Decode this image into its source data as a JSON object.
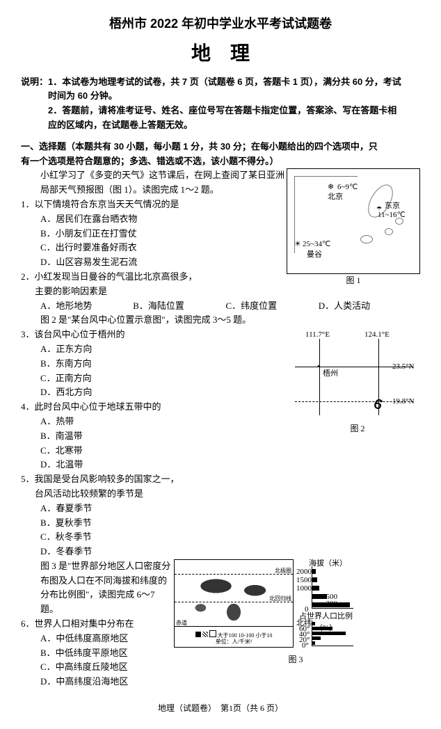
{
  "header": {
    "title": "梧州市 2022 年初中学业水平考试试题卷",
    "subject": "地理"
  },
  "instructions": {
    "label": "说明：",
    "items": [
      "1．本试卷为地理考试的试卷，共 7 页（试题卷 6 页，答题卡 1 页），满分共 60 分，考试时间为 60 分钟。",
      "2．答题前，请将准考证号、姓名、座位号写在答题卡指定位置，答案涂、写在答题卡相应的区域内，在试题卷上答题无效。"
    ]
  },
  "section1": {
    "heading": "一、选择题（本题共有 30 小题，每小题 1 分，共 30 分；在每小题给出的四个选项中，只有一个选项是符合题意的；多选、错选或不选，该小题不得分。）"
  },
  "passage1": {
    "text": "小红学习了《多变的天气》这节课后，在网上查阅了某日亚洲局部天气预报图（图 1）。读图完成 1～2 题。"
  },
  "fig1": {
    "caption": "图 1",
    "beijing": "北京",
    "beijing_w": "6~9℃",
    "tokyo": "东京",
    "tokyo_w": "11~16℃",
    "bangkok": "曼谷",
    "bangkok_w": "25~34℃",
    "snow": "❄",
    "sun": "☀",
    "cloud_rain": "☂"
  },
  "q1": {
    "stem": "1．以下情境符合东京当天天气情况的是",
    "A": "A．居民们在露台晒衣物",
    "B": "B．小朋友们正在打雪仗",
    "C": "C．出行时要准备好雨衣",
    "D": "D．山区容易发生泥石流"
  },
  "q2": {
    "stem_a": "2．小红发现当日曼谷的气温比北京高很多，",
    "stem_b": "主要的影响因素是",
    "A": "A．地形地势",
    "B": "B．海陆位置",
    "C": "C．纬度位置",
    "D": "D．人类活动"
  },
  "passage2": {
    "text": "图 2 是\"某台风中心位置示意图\"，读图完成 3～5 题。"
  },
  "fig2": {
    "caption": "图 2",
    "lon1": "111.7°E",
    "lon2": "124.1°E",
    "lat1": "23.5°N",
    "lat2": "19.8°N",
    "city": "梧州"
  },
  "q3": {
    "stem": "3．该台风中心位于梧州的",
    "A": "A．正东方向",
    "B": "B．东南方向",
    "C": "C．正南方向",
    "D": "D．西北方向"
  },
  "q4": {
    "stem": "4．此时台风中心位于地球五带中的",
    "A": "A．热带",
    "B": "B．南温带",
    "C": "C．北寒带",
    "D": "D．北温带"
  },
  "q5": {
    "stem_a": "5．我国是受台风影响较多的国家之一，",
    "stem_b": "台风活动比较频繁的季节是",
    "A": "A．春夏季节",
    "B": "B．夏秋季节",
    "C": "C．秋冬季节",
    "D": "D．冬春季节"
  },
  "passage3": {
    "text": "图 3 是\"世界部分地区人口密度分布图及人口在不同海拔和纬度的分布比例图\"，读图完成 6～7 题。"
  },
  "fig3": {
    "caption": "图 3",
    "map_labels": {
      "arctic": "北极圈",
      "tropic_n": "北回归线",
      "equator": "赤道",
      "legend_title": "大于100 10-100 小于10",
      "legend_unit": "单位：人/千米²"
    },
    "chart_alt": {
      "ylabel": "海拔（米）",
      "yticks": [
        "2000",
        "1500",
        "1000",
        "500",
        "200",
        "0"
      ],
      "values": [
        5,
        7,
        10,
        22,
        56
      ],
      "xlabel": "占世界人口比例（%）",
      "xmax": 60
    },
    "chart_lat": {
      "yticks": [
        "北纬",
        "60°",
        "40°",
        "20°",
        "0°",
        "南纬"
      ],
      "values": [
        4,
        30,
        50,
        12,
        4
      ],
      "xlabel": "占世界人口比例（%）",
      "xmax": 60
    }
  },
  "q6": {
    "stem": "6．世界人口相对集中分布在",
    "A": "A．中低纬度高原地区",
    "B": "B．中低纬度平原地区",
    "C": "C．中高纬度丘陵地区",
    "D": "D．中高纬度沿海地区"
  },
  "footer": "地理（试题卷）　第1页（共 6 页）"
}
